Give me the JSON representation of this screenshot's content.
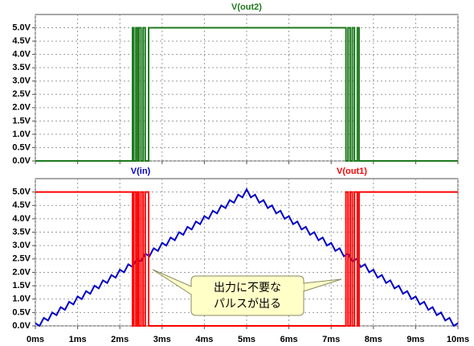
{
  "chart_data": [
    {
      "type": "line",
      "series": [
        {
          "name": "V(out2)",
          "color": "#1e7a1e",
          "x": [
            0,
            2.3,
            2.3,
            2.33,
            2.33,
            2.38,
            2.38,
            2.42,
            2.42,
            2.45,
            2.45,
            2.5,
            2.5,
            2.55,
            2.55,
            2.6,
            2.6,
            2.68,
            2.68,
            7.35,
            7.35,
            7.4,
            7.4,
            7.45,
            7.45,
            7.5,
            7.5,
            7.55,
            7.55,
            7.62,
            7.62,
            7.66,
            7.66,
            10
          ],
          "values": [
            0,
            0,
            5,
            5,
            0,
            0,
            5,
            5,
            0,
            0,
            5,
            5,
            0,
            0,
            5,
            5,
            0,
            0,
            5,
            5,
            0,
            0,
            5,
            5,
            0,
            0,
            5,
            5,
            0,
            0,
            5,
            5,
            0,
            0
          ]
        }
      ],
      "xlim": [
        0,
        10
      ],
      "xticks": [
        0,
        1,
        2,
        3,
        4,
        5,
        6,
        7,
        8,
        9,
        10
      ],
      "ylim": [
        0,
        5.5
      ],
      "yticks": [
        {
          "value": 0,
          "label": "0.0V"
        },
        {
          "value": 0.5,
          "label": "0.5V"
        },
        {
          "value": 1,
          "label": "1.0V"
        },
        {
          "value": 1.5,
          "label": "1.5V"
        },
        {
          "value": 2,
          "label": "2.0V"
        },
        {
          "value": 2.5,
          "label": "2.5V"
        },
        {
          "value": 3,
          "label": "3.0V"
        },
        {
          "value": 3.5,
          "label": "3.5V"
        },
        {
          "value": 4,
          "label": "4.0V"
        },
        {
          "value": 4.5,
          "label": "4.5V"
        },
        {
          "value": 5,
          "label": "5.0V"
        }
      ],
      "grid": true
    },
    {
      "type": "line",
      "series": [
        {
          "name": "V(in)",
          "color": "#0000c8",
          "x": [
            0,
            0.1,
            0.2,
            0.3,
            0.4,
            0.5,
            0.6,
            0.7,
            0.8,
            0.9,
            1,
            1.1,
            1.2,
            1.3,
            1.4,
            1.5,
            1.6,
            1.7,
            1.8,
            1.9,
            2,
            2.1,
            2.2,
            2.3,
            2.4,
            2.5,
            2.6,
            2.7,
            2.8,
            2.9,
            3,
            3.1,
            3.2,
            3.3,
            3.4,
            3.5,
            3.6,
            3.7,
            3.8,
            3.9,
            4,
            4.1,
            4.2,
            4.3,
            4.4,
            4.5,
            4.6,
            4.7,
            4.8,
            4.9,
            5,
            5.1,
            5.2,
            5.3,
            5.4,
            5.5,
            5.6,
            5.7,
            5.8,
            5.9,
            6,
            6.1,
            6.2,
            6.3,
            6.4,
            6.5,
            6.6,
            6.7,
            6.8,
            6.9,
            7,
            7.1,
            7.2,
            7.3,
            7.4,
            7.5,
            7.6,
            7.7,
            7.8,
            7.9,
            8,
            8.1,
            8.2,
            8.3,
            8.4,
            8.5,
            8.6,
            8.7,
            8.8,
            8.9,
            9,
            9.1,
            9.2,
            9.3,
            9.4,
            9.5,
            9.6,
            9.7,
            9.8,
            9.9,
            10
          ],
          "values": [
            0.1,
            0,
            0.3,
            0.2,
            0.5,
            0.4,
            0.7,
            0.6,
            0.9,
            0.8,
            1.1,
            1.0,
            1.3,
            1.2,
            1.5,
            1.4,
            1.7,
            1.6,
            1.9,
            1.8,
            2.1,
            2.0,
            2.3,
            2.2,
            2.5,
            2.4,
            2.7,
            2.6,
            2.9,
            2.8,
            3.1,
            3.0,
            3.3,
            3.2,
            3.5,
            3.4,
            3.7,
            3.6,
            3.9,
            3.8,
            4.1,
            4.0,
            4.3,
            4.2,
            4.5,
            4.4,
            4.7,
            4.6,
            4.9,
            4.8,
            5.1,
            4.8,
            4.9,
            4.6,
            4.7,
            4.4,
            4.5,
            4.2,
            4.3,
            4.0,
            4.1,
            3.8,
            3.9,
            3.6,
            3.7,
            3.4,
            3.5,
            3.2,
            3.3,
            3.0,
            3.1,
            2.8,
            2.9,
            2.6,
            2.7,
            2.4,
            2.5,
            2.2,
            2.3,
            2.0,
            2.1,
            1.8,
            1.9,
            1.6,
            1.7,
            1.4,
            1.5,
            1.2,
            1.3,
            1.0,
            1.1,
            0.8,
            0.9,
            0.6,
            0.7,
            0.4,
            0.5,
            0.2,
            0.3,
            0,
            0.1
          ]
        },
        {
          "name": "V(out1)",
          "color": "#ff0000",
          "x": [
            0,
            2.3,
            2.3,
            2.33,
            2.33,
            2.38,
            2.38,
            2.42,
            2.42,
            2.45,
            2.45,
            2.5,
            2.5,
            2.55,
            2.55,
            2.6,
            2.6,
            2.68,
            2.68,
            7.35,
            7.35,
            7.4,
            7.4,
            7.45,
            7.45,
            7.5,
            7.5,
            7.55,
            7.55,
            7.62,
            7.62,
            7.66,
            7.66,
            10
          ],
          "values": [
            5,
            5,
            0,
            0,
            5,
            5,
            0,
            0,
            5,
            5,
            0,
            0,
            5,
            5,
            0,
            0,
            5,
            5,
            0,
            0,
            5,
            5,
            0,
            0,
            5,
            5,
            0,
            0,
            5,
            5,
            0,
            0,
            5,
            5
          ]
        }
      ],
      "annotation": [
        "出力に不要な",
        "パルスが出る"
      ],
      "xlim": [
        0,
        10
      ],
      "xticks": [
        {
          "value": 0,
          "label": "0ms"
        },
        {
          "value": 1,
          "label": "1ms"
        },
        {
          "value": 2,
          "label": "2ms"
        },
        {
          "value": 3,
          "label": "3ms"
        },
        {
          "value": 4,
          "label": "4ms"
        },
        {
          "value": 5,
          "label": "5ms"
        },
        {
          "value": 6,
          "label": "6ms"
        },
        {
          "value": 7,
          "label": "7ms"
        },
        {
          "value": 8,
          "label": "8ms"
        },
        {
          "value": 9,
          "label": "9ms"
        },
        {
          "value": 10,
          "label": "10ms"
        }
      ],
      "ylim": [
        0,
        5.5
      ],
      "yticks": [
        {
          "value": 0,
          "label": "0.0V"
        },
        {
          "value": 0.5,
          "label": "0.5V"
        },
        {
          "value": 1,
          "label": "1.0V"
        },
        {
          "value": 1.5,
          "label": "1.5V"
        },
        {
          "value": 2,
          "label": "2.0V"
        },
        {
          "value": 2.5,
          "label": "2.5V"
        },
        {
          "value": 3,
          "label": "3.0V"
        },
        {
          "value": 3.5,
          "label": "3.5V"
        },
        {
          "value": 4,
          "label": "4.0V"
        },
        {
          "value": 4.5,
          "label": "4.5V"
        },
        {
          "value": 5,
          "label": "5.0V"
        }
      ],
      "grid": true
    }
  ]
}
